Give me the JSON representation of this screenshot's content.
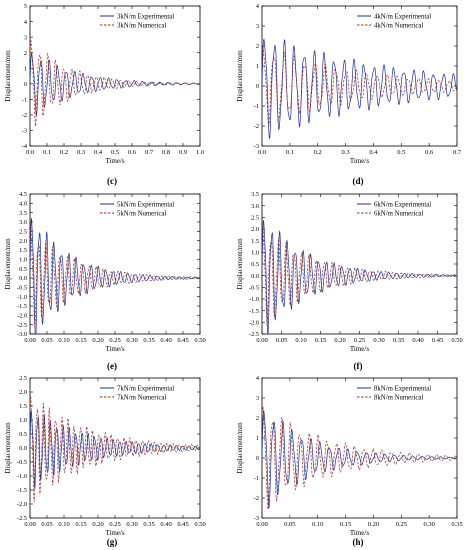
{
  "figure": {
    "colors": {
      "experimental": "#1f2f8c",
      "numerical": "#a02b2b",
      "axis": "#000000",
      "background": "#ffffff"
    }
  },
  "chart_data": [
    {
      "panel": "c",
      "caption": "(c)",
      "type": "line",
      "xlabel": "Time/s",
      "ylabel": "Displacement/mm",
      "xlim": [
        0.0,
        1.0
      ],
      "ylim": [
        -4,
        5
      ],
      "xticks": [
        "0.0",
        "0.1",
        "0.2",
        "0.3",
        "0.4",
        "0.5",
        "0.6",
        "0.7",
        "0.8",
        "0.9",
        "1.0"
      ],
      "yticks": [
        "-4",
        "-3",
        "-2",
        "-1",
        "0",
        "1",
        "2",
        "3",
        "4",
        "5"
      ],
      "legend_position": "top-right",
      "series": [
        {
          "name": "3kN/m Experimental",
          "style": "solid",
          "color": "#1f2f8c",
          "model": {
            "amplitude": 2.4,
            "frequency": 20,
            "decay": 4.0,
            "phase": 0.0
          }
        },
        {
          "name": "3kN/m Numerical",
          "style": "dashed",
          "color": "#a02b2b",
          "model": {
            "amplitude": 3.2,
            "frequency": 21,
            "decay": 4.6,
            "phase": 0.5
          }
        }
      ]
    },
    {
      "panel": "d",
      "caption": "(d)",
      "type": "line",
      "xlabel": "Time/s",
      "ylabel": "Displacement/mm",
      "xlim": [
        0.0,
        0.7
      ],
      "ylim": [
        -3,
        4
      ],
      "xticks": [
        "0.0",
        "0.1",
        "0.2",
        "0.3",
        "0.4",
        "0.5",
        "0.6",
        "0.7"
      ],
      "yticks": [
        "-3",
        "-2",
        "-1",
        "0",
        "1",
        "2",
        "3",
        "4"
      ],
      "legend_position": "top-right",
      "series": [
        {
          "name": "4kN/m Experimental",
          "style": "solid",
          "color": "#1f2f8c",
          "model": {
            "amplitude": 2.8,
            "frequency": 28,
            "decay": 2.2,
            "phase": 0.0
          }
        },
        {
          "name": "4kN/m Numerical",
          "style": "dashed",
          "color": "#a02b2b",
          "model": {
            "amplitude": 2.2,
            "frequency": 27,
            "decay": 3.0,
            "phase": 0.7
          }
        }
      ]
    },
    {
      "panel": "e",
      "caption": "(e)",
      "type": "line",
      "xlabel": "Time/s",
      "ylabel": "Displacement/mm",
      "xlim": [
        0.0,
        0.5
      ],
      "ylim": [
        -3.0,
        4.5
      ],
      "xticks": [
        "0.00",
        "0.05",
        "0.10",
        "0.15",
        "0.20",
        "0.25",
        "0.30",
        "0.35",
        "0.40",
        "0.45",
        "0.50"
      ],
      "yticks": [
        "-3.0",
        "-2.5",
        "-2.0",
        "-1.5",
        "-1.0",
        "-0.5",
        "0.0",
        "0.5",
        "1.0",
        "1.5",
        "2.0",
        "2.5",
        "3.0",
        "3.5",
        "4.0",
        "4.5"
      ],
      "legend_position": "top-right",
      "series": [
        {
          "name": "5kN/m Experimental",
          "style": "solid",
          "color": "#1f2f8c",
          "model": {
            "amplitude": 3.9,
            "frequency": 46,
            "decay": 9.0,
            "phase": 0.0
          }
        },
        {
          "name": "5kN/m Numerical",
          "style": "dashed",
          "color": "#a02b2b",
          "model": {
            "amplitude": 3.0,
            "frequency": 47,
            "decay": 8.0,
            "phase": 0.6
          }
        }
      ]
    },
    {
      "panel": "f",
      "caption": "(f)",
      "type": "line",
      "xlabel": "Time/s",
      "ylabel": "Displacement/mm",
      "xlim": [
        0.0,
        0.5
      ],
      "ylim": [
        -2.5,
        3.5
      ],
      "xticks": [
        "0.00",
        "0.05",
        "0.10",
        "0.15",
        "0.20",
        "0.25",
        "0.30",
        "0.35",
        "0.40",
        "0.45",
        "0.50"
      ],
      "yticks": [
        "-2.5",
        "-2.0",
        "-1.5",
        "-1.0",
        "-0.5",
        "0.0",
        "0.5",
        "1.0",
        "1.5",
        "2.0",
        "2.5",
        "3.0",
        "3.5"
      ],
      "legend_position": "top-right",
      "series": [
        {
          "name": "6kN/m Experimental",
          "style": "solid",
          "color": "#1f2f8c",
          "model": {
            "amplitude": 2.9,
            "frequency": 50,
            "decay": 9.0,
            "phase": 0.0
          }
        },
        {
          "name": "6kN/m Numerical",
          "style": "dashed",
          "color": "#a02b2b",
          "model": {
            "amplitude": 2.4,
            "frequency": 51,
            "decay": 8.0,
            "phase": 0.6
          }
        }
      ]
    },
    {
      "panel": "g",
      "caption": "(g)",
      "type": "line",
      "xlabel": "Time/s",
      "ylabel": "Displacement/mm",
      "xlim": [
        0.0,
        0.5
      ],
      "ylim": [
        -2.5,
        2.5
      ],
      "xticks": [
        "0.00",
        "0.05",
        "0.10",
        "0.15",
        "0.20",
        "0.25",
        "0.30",
        "0.35",
        "0.40",
        "0.45",
        "0.50"
      ],
      "yticks": [
        "-2.5",
        "-2.0",
        "-1.5",
        "-1.0",
        "-0.5",
        "0.0",
        "0.5",
        "1.0",
        "1.5",
        "2.0",
        "2.5"
      ],
      "legend_position": "top-right",
      "series": [
        {
          "name": "7kN/m Experimental",
          "style": "solid",
          "color": "#1f2f8c",
          "model": {
            "amplitude": 1.6,
            "frequency": 54,
            "decay": 6.5,
            "phase": 0.0
          }
        },
        {
          "name": "7kN/m Numerical",
          "style": "dashed",
          "color": "#a02b2b",
          "model": {
            "amplitude": 2.1,
            "frequency": 55,
            "decay": 6.0,
            "phase": 0.6
          }
        }
      ]
    },
    {
      "panel": "h",
      "caption": "(h)",
      "type": "line",
      "xlabel": "Time/s",
      "ylabel": "Displacement/mm",
      "xlim": [
        0.0,
        0.35
      ],
      "ylim": [
        -3,
        4
      ],
      "xticks": [
        "0.00",
        "0.05",
        "0.10",
        "0.15",
        "0.20",
        "0.25",
        "0.30",
        "0.35"
      ],
      "yticks": [
        "-3",
        "-2",
        "-1",
        "0",
        "1",
        "2",
        "3",
        "4"
      ],
      "legend_position": "top-right",
      "series": [
        {
          "name": "8kN/m Experimental",
          "style": "solid",
          "color": "#1f2f8c",
          "model": {
            "amplitude": 2.9,
            "frequency": 60,
            "decay": 12.0,
            "phase": 0.0
          }
        },
        {
          "name": "8kN/m Numerical",
          "style": "dashed",
          "color": "#a02b2b",
          "model": {
            "amplitude": 2.9,
            "frequency": 61,
            "decay": 9.0,
            "phase": 0.7
          }
        }
      ]
    }
  ]
}
